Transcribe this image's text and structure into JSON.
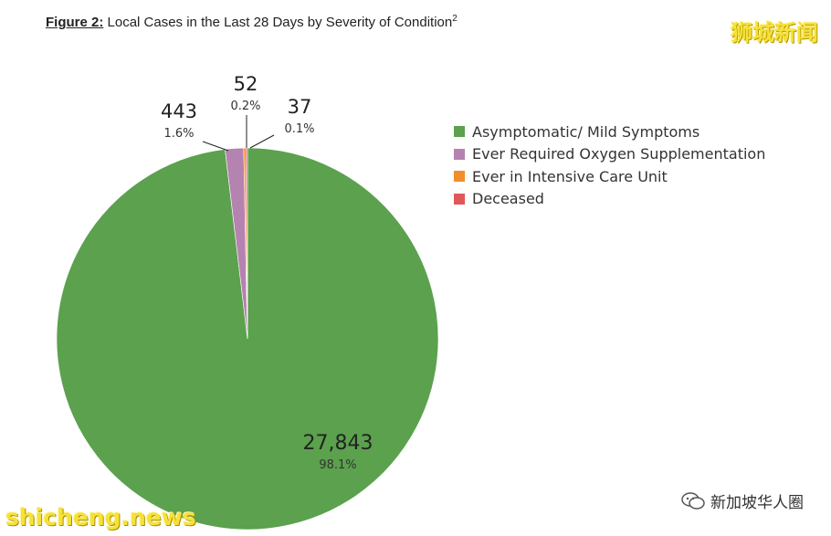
{
  "figure": {
    "label": "Figure 2:",
    "title": " Local Cases in the Last 28 Days by Severity of Condition",
    "superscript": "2"
  },
  "watermarks": {
    "top": "狮城新闻",
    "bottom": "shicheng.news",
    "wechat": "新加坡华人圈"
  },
  "chart_data": {
    "type": "pie",
    "title": "Local Cases in the Last 28 Days by Severity of Condition",
    "slices": [
      {
        "label": "Asymptomatic/ Mild Symptoms",
        "value": 27843,
        "value_text": "27,843",
        "percent_text": "98.1%",
        "color": "#5ba14e"
      },
      {
        "label": "Ever Required Oxygen Supplementation",
        "value": 443,
        "value_text": "443",
        "percent_text": "1.6%",
        "color": "#b583b0"
      },
      {
        "label": "Ever in Intensive Care Unit",
        "value": 52,
        "value_text": "52",
        "percent_text": "0.2%",
        "color": "#f28e2c"
      },
      {
        "label": "Deceased",
        "value": 37,
        "value_text": "37",
        "percent_text": "0.1%",
        "color": "#e15759"
      }
    ],
    "legend_position": "right"
  }
}
